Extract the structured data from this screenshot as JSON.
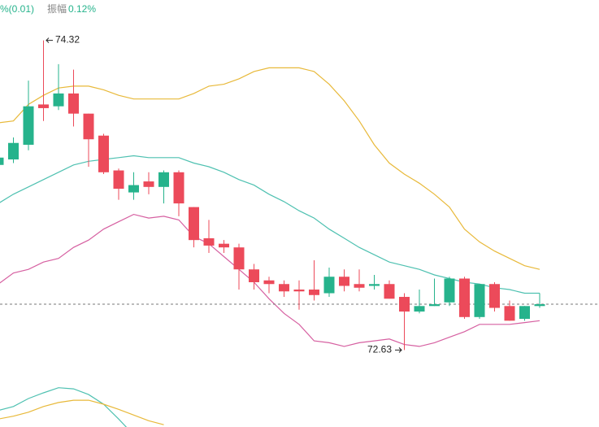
{
  "chart_data": [
    {
      "type": "candlestick",
      "header": {
        "change_fragment": "%(0.01)",
        "amplitude_label": "振幅",
        "amplitude_value": "0.12%"
      },
      "ylim": [
        72.21,
        74.54
      ],
      "up_color": "#26b38c",
      "down_color": "#ec4a5a",
      "open": [
        73.64,
        73.67,
        73.75,
        73.97,
        73.96,
        74.03,
        73.92,
        73.8,
        73.61,
        73.49,
        73.55,
        73.52,
        73.6,
        73.41,
        73.24,
        73.21,
        73.19,
        73.07,
        73.01,
        72.99,
        72.96,
        72.96,
        72.94,
        73.03,
        72.99,
        72.98,
        72.99,
        72.92,
        72.84,
        72.87,
        72.89,
        73.02,
        72.81,
        72.99,
        72.87,
        72.8,
        72.87
      ],
      "high": [
        73.68,
        73.79,
        74.1,
        74.32,
        74.19,
        74.16,
        73.92,
        73.81,
        73.62,
        73.6,
        73.6,
        73.61,
        73.61,
        73.41,
        73.34,
        73.23,
        73.21,
        73.1,
        73.03,
        73.01,
        73.01,
        73.12,
        73.08,
        73.07,
        73.07,
        73.04,
        73.01,
        72.94,
        72.96,
        73.02,
        73.03,
        73.03,
        72.99,
        73.0,
        72.9,
        72.87,
        72.94
      ],
      "low": [
        73.64,
        73.65,
        73.72,
        73.88,
        73.94,
        73.85,
        73.63,
        73.59,
        73.45,
        73.45,
        73.48,
        73.43,
        73.36,
        73.19,
        73.16,
        73.16,
        72.96,
        72.96,
        72.94,
        72.92,
        72.85,
        72.9,
        72.92,
        72.95,
        72.95,
        72.96,
        72.91,
        72.63,
        72.83,
        72.87,
        72.87,
        72.8,
        72.8,
        72.84,
        72.79,
        72.79,
        72.86
      ],
      "close": [
        73.68,
        73.76,
        73.96,
        73.95,
        74.03,
        73.92,
        73.78,
        73.6,
        73.51,
        73.53,
        73.52,
        73.6,
        73.43,
        73.23,
        73.2,
        73.19,
        73.07,
        73.0,
        72.99,
        72.95,
        72.95,
        72.93,
        73.03,
        72.98,
        72.97,
        72.99,
        72.91,
        72.84,
        72.87,
        72.88,
        73.02,
        72.81,
        72.99,
        72.86,
        72.79,
        72.87,
        72.88
      ],
      "bands": [
        {
          "color": "#e8b93a",
          "values": [
            73.87,
            73.88,
            73.97,
            74.02,
            74.06,
            74.07,
            74.07,
            74.05,
            74.02,
            74.0,
            74.0,
            74.0,
            74.0,
            74.03,
            74.07,
            74.08,
            74.11,
            74.15,
            74.17,
            74.17,
            74.17,
            74.15,
            74.08,
            73.99,
            73.88,
            73.75,
            73.65,
            73.59,
            73.54,
            73.48,
            73.41,
            73.29,
            73.22,
            73.17,
            73.13,
            73.09,
            73.07
          ]
        },
        {
          "color": "#4fc1b1",
          "values": [
            73.43,
            73.48,
            73.52,
            73.56,
            73.6,
            73.64,
            73.66,
            73.67,
            73.68,
            73.69,
            73.68,
            73.68,
            73.68,
            73.65,
            73.63,
            73.6,
            73.56,
            73.53,
            73.48,
            73.44,
            73.39,
            73.35,
            73.29,
            73.24,
            73.19,
            73.15,
            73.11,
            73.09,
            73.07,
            73.04,
            73.02,
            73.0,
            72.99,
            72.97,
            72.96,
            72.94,
            72.94
          ]
        },
        {
          "color": "#d660a1",
          "values": [
            72.99,
            73.05,
            73.07,
            73.11,
            73.13,
            73.19,
            73.23,
            73.29,
            73.33,
            73.37,
            73.35,
            73.36,
            73.34,
            73.25,
            73.21,
            73.14,
            73.07,
            73.0,
            72.91,
            72.83,
            72.77,
            72.68,
            72.67,
            72.65,
            72.67,
            72.68,
            72.69,
            72.66,
            72.65,
            72.67,
            72.7,
            72.73,
            72.77,
            72.77,
            72.77,
            72.78,
            72.79
          ]
        }
      ],
      "last_price": 72.88,
      "max_label": 74.32,
      "min_label": 72.63
    },
    {
      "type": "line",
      "ylim": [
        0,
        1
      ],
      "series": [
        {
          "color": "#4fc1b1",
          "values": [
            0.29,
            0.36,
            0.5,
            0.6,
            0.69,
            0.67,
            0.57,
            0.4,
            0.14,
            -0.14,
            null,
            null
          ]
        },
        {
          "color": "#e8b93a",
          "values": [
            0.14,
            0.19,
            0.26,
            0.36,
            0.43,
            0.47,
            0.47,
            0.4,
            0.31,
            0.21,
            0.11,
            0.04
          ]
        }
      ]
    }
  ]
}
